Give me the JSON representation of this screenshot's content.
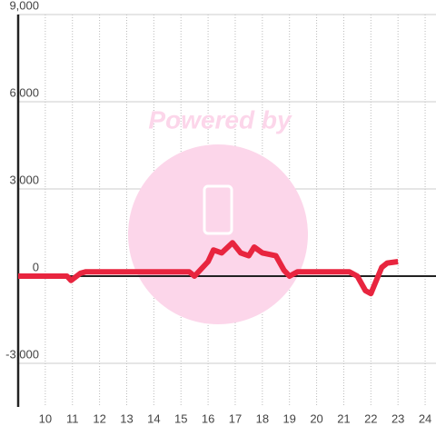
{
  "chart_data": {
    "type": "line",
    "watermark": "Powered by",
    "x": [
      9,
      10.8,
      10.95,
      11.3,
      11.5,
      15.3,
      15.5,
      16.0,
      16.2,
      16.5,
      16.9,
      17.2,
      17.5,
      17.7,
      18.0,
      18.5,
      18.8,
      19.0,
      19.3,
      21.2,
      21.5,
      21.8,
      22.0,
      22.4,
      22.6,
      23.0
    ],
    "series": [
      {
        "color": "#e8253f",
        "values": [
          0,
          0,
          -150,
          100,
          150,
          150,
          0,
          500,
          900,
          800,
          1150,
          800,
          700,
          1000,
          800,
          700,
          200,
          0,
          150,
          150,
          0,
          -500,
          -600,
          300,
          450,
          500
        ]
      }
    ],
    "xlim": [
      9,
      24.4
    ],
    "xticks": [
      10,
      11,
      12,
      13,
      14,
      15,
      16,
      17,
      18,
      19,
      20,
      21,
      22,
      23,
      24
    ],
    "ylim": [
      -4500,
      9000
    ],
    "yticks": [
      {
        "value": -3000,
        "label": "-3,000"
      },
      0,
      {
        "value": 3000,
        "label": "3,000"
      },
      {
        "value": 6000,
        "label": "6,000"
      },
      {
        "value": 9000,
        "label": "9,000"
      }
    ],
    "grid": true
  }
}
